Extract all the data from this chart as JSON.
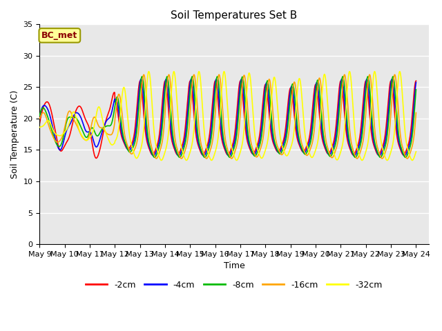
{
  "title": "Soil Temperatures Set B",
  "xlabel": "Time",
  "ylabel": "Soil Temperature (C)",
  "ylim": [
    0,
    35
  ],
  "annotation": "BC_met",
  "annotation_color": "#8B0000",
  "annotation_bg": "#FFFF99",
  "plot_bg": "#E8E8E8",
  "fig_bg": "#FFFFFF",
  "series_colors": [
    "#FF0000",
    "#0000FF",
    "#00BB00",
    "#FFA500",
    "#FFFF00"
  ],
  "series_labels": [
    "-2cm",
    "-4cm",
    "-8cm",
    "-16cm",
    "-32cm"
  ],
  "tick_labels": [
    "May 9",
    "May 10",
    "May 11",
    "May 12",
    "May 13",
    "May 14",
    "May 15",
    "May 16",
    "May 17",
    "May 18",
    "May 19",
    "May 20",
    "May 21",
    "May 22",
    "May 23",
    "May 24"
  ],
  "tick_positions": [
    0,
    1,
    2,
    3,
    4,
    5,
    6,
    7,
    8,
    9,
    10,
    11,
    12,
    13,
    14,
    15
  ]
}
